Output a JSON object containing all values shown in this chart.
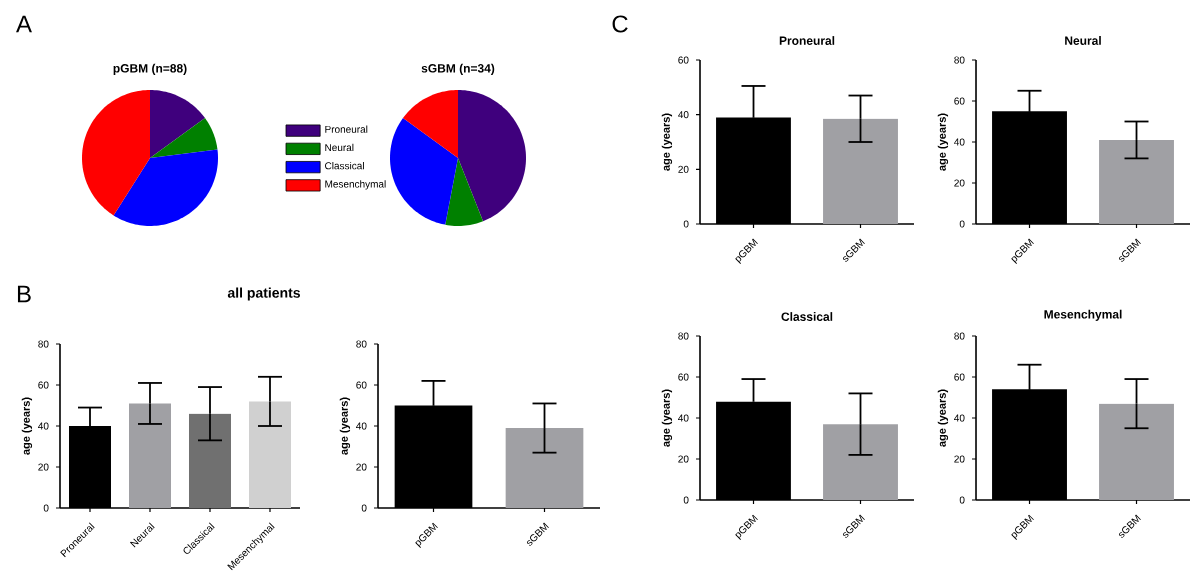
{
  "chart_data": [
    {
      "type": "pie",
      "title": "pGBM (n=88)",
      "annotations": [
        "A"
      ],
      "categories": [
        "Proneural",
        "Neural",
        "Classical",
        "Mesenchymal"
      ],
      "values": [
        15,
        8,
        36,
        41
      ],
      "colors": [
        "#3f007d",
        "#008000",
        "#0000ff",
        "#ff0000"
      ],
      "legend": "right"
    },
    {
      "type": "pie",
      "title": "sGBM (n=34)",
      "categories": [
        null,
        null,
        null,
        null
      ],
      "values": [
        44,
        9,
        32,
        15
      ],
      "colors": [
        "#3f007d",
        "#008000",
        "#0000ff",
        "#ff0000"
      ]
    },
    {
      "type": "bar",
      "title": "all patients",
      "annotations": [
        "B"
      ],
      "ylabel": "age (years)",
      "categories": [
        "Proneural",
        "Neural",
        "Classical",
        "Mesenchymal"
      ],
      "values": [
        40,
        51,
        46,
        52
      ],
      "errors": [
        9,
        10,
        13,
        12
      ],
      "colors": [
        "#000000",
        "#a0a0a4",
        "#707070",
        "#d0d0d0"
      ],
      "ylim": [
        0,
        80
      ],
      "yticks": [
        0,
        20,
        40,
        60,
        80
      ]
    },
    {
      "type": "bar",
      "ylabel": "age (years)",
      "categories": [
        "pGBM",
        "sGBM"
      ],
      "values": [
        50,
        39
      ],
      "errors": [
        12,
        12
      ],
      "colors": [
        "#000000",
        "#a0a0a4"
      ],
      "ylim": [
        0,
        80
      ],
      "yticks": [
        0,
        20,
        40,
        60,
        80
      ]
    },
    {
      "type": "bar",
      "title": "Proneural",
      "annotations": [
        "C"
      ],
      "ylabel": "age (years)",
      "categories": [
        "pGBM",
        "sGBM"
      ],
      "values": [
        39,
        38.5
      ],
      "errors": [
        11.5,
        8.5
      ],
      "colors": [
        "#000000",
        "#a0a0a4"
      ],
      "ylim": [
        0,
        60
      ],
      "yticks": [
        0,
        20,
        40,
        60
      ]
    },
    {
      "type": "bar",
      "title": "Neural",
      "ylabel": "age (years)",
      "categories": [
        "pGBM",
        "sGBM"
      ],
      "values": [
        55,
        41
      ],
      "errors": [
        10,
        9
      ],
      "colors": [
        "#000000",
        "#a0a0a4"
      ],
      "ylim": [
        0,
        80
      ],
      "yticks": [
        0,
        20,
        40,
        60,
        80
      ]
    },
    {
      "type": "bar",
      "title": "Classical",
      "ylabel": "age (years)",
      "categories": [
        "pGBM",
        "sGBM"
      ],
      "values": [
        48,
        37
      ],
      "errors": [
        11,
        15
      ],
      "colors": [
        "#000000",
        "#a0a0a4"
      ],
      "ylim": [
        0,
        80
      ],
      "yticks": [
        0,
        20,
        40,
        60,
        80
      ]
    },
    {
      "type": "bar",
      "title": "Mesenchymal",
      "ylabel": "age (years)",
      "categories": [
        "pGBM",
        "sGBM"
      ],
      "values": [
        54,
        47
      ],
      "errors": [
        12,
        12
      ],
      "colors": [
        "#000000",
        "#a0a0a4"
      ],
      "ylim": [
        0,
        80
      ],
      "yticks": [
        0,
        20,
        40,
        60,
        80
      ]
    }
  ]
}
